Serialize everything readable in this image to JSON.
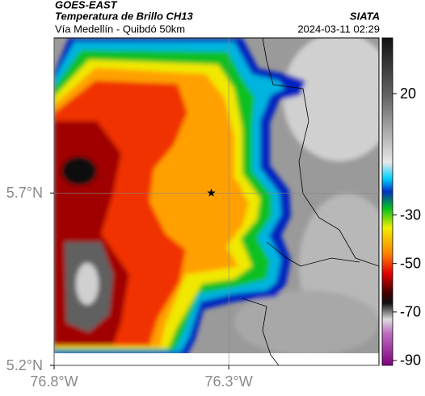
{
  "header": {
    "source": "GOES-EAST",
    "title": "Temperatura de Brillo CH13",
    "subtitle": "Vía Medellín - Quibdó 50km",
    "agency": "SIATA",
    "datetime": "2024-03-11 02:29"
  },
  "map": {
    "xlim": [
      -76.8,
      -75.87
    ],
    "ylim": [
      5.2,
      6.15
    ],
    "xticks": [
      {
        "value": -76.8,
        "label": "76.8°W"
      },
      {
        "value": -76.3,
        "label": "76.3°W"
      }
    ],
    "yticks": [
      {
        "value": 5.2,
        "label": "5.2°N"
      },
      {
        "value": 5.7,
        "label": "5.7°N"
      }
    ],
    "grid": true,
    "marker": {
      "lon": -76.35,
      "lat": 5.7
    }
  },
  "colorbar": {
    "lim": [
      -92,
      43
    ],
    "ticks": [
      20,
      -30,
      -50,
      -70,
      -90
    ]
  }
}
